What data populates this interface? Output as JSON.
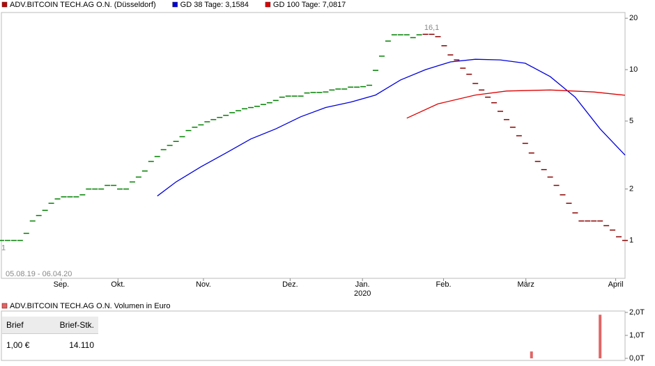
{
  "chart_data": [
    {
      "type": "line",
      "date_range": "05.08.19 - 06.04.20",
      "log_y": true,
      "xlim": [
        0,
        100
      ],
      "ylim": [
        0.6,
        21.6
      ],
      "yticks": [
        20,
        10,
        5,
        2,
        1
      ],
      "xticks": [
        {
          "value": 9.6,
          "label": "Sep."
        },
        {
          "value": 18.7,
          "label": "Okt."
        },
        {
          "value": 32.4,
          "label": "Nov."
        },
        {
          "value": 46.3,
          "label": "Dez."
        },
        {
          "value": 57.9,
          "label": "Jan."
        },
        {
          "value": 70.9,
          "label": "Feb."
        },
        {
          "value": 84.1,
          "label": "März"
        },
        {
          "value": 98.5,
          "label": "April"
        }
      ],
      "x_year_labels": [
        {
          "value": 57.9,
          "label": "2020"
        }
      ],
      "series": [
        {
          "name": "ADV.BITCOIN TECH.AG O.N. (Düsseldorf)",
          "color": "#c00000",
          "up_color": "#008000",
          "down_color": "#8b0000",
          "marker": "dash",
          "x": [
            0,
            1,
            2,
            3,
            4,
            5,
            6,
            7,
            8,
            9,
            10,
            11,
            12,
            13,
            14,
            15,
            16,
            17,
            18,
            19,
            20,
            21,
            22,
            23,
            24,
            25,
            26,
            27,
            28,
            29,
            30,
            31,
            32,
            33,
            34,
            35,
            36,
            37,
            38,
            39,
            40,
            41,
            42,
            43,
            44,
            45,
            46,
            47,
            48,
            49,
            50,
            51,
            52,
            53,
            54,
            55,
            56,
            57,
            58,
            59,
            60,
            61,
            62,
            63,
            64,
            65,
            66,
            67,
            68,
            69,
            70,
            71,
            72,
            73,
            74,
            75,
            76,
            77,
            78,
            79,
            80,
            81,
            82,
            83,
            84,
            85,
            86,
            87,
            88,
            89,
            90,
            91,
            92,
            93,
            94,
            95,
            96,
            97,
            98,
            99,
            100
          ],
          "values": [
            1.0,
            1.0,
            1.0,
            1.0,
            1.1,
            1.3,
            1.4,
            1.5,
            1.65,
            1.75,
            1.8,
            1.8,
            1.8,
            1.85,
            2.0,
            2.0,
            2.0,
            2.1,
            2.1,
            2.0,
            2.0,
            2.2,
            2.35,
            2.55,
            2.9,
            3.1,
            3.4,
            3.6,
            3.8,
            4.05,
            4.4,
            4.6,
            4.75,
            4.95,
            5.1,
            5.25,
            5.4,
            5.6,
            5.75,
            5.9,
            6.0,
            6.1,
            6.25,
            6.4,
            6.6,
            6.9,
            7.0,
            7.0,
            7.0,
            7.3,
            7.35,
            7.35,
            7.4,
            7.6,
            7.7,
            7.7,
            7.9,
            7.9,
            7.95,
            8.1,
            9.9,
            12.0,
            14.7,
            16.0,
            16.0,
            16.0,
            15.4,
            16.0,
            16.1,
            16.1,
            15.6,
            13.8,
            12.2,
            11.4,
            10.2,
            9.4,
            8.3,
            7.6,
            6.9,
            6.4,
            5.7,
            5.1,
            4.6,
            4.1,
            3.7,
            3.25,
            2.9,
            2.6,
            2.35,
            2.1,
            1.85,
            1.65,
            1.45,
            1.3,
            1.3,
            1.3,
            1.3,
            1.22,
            1.15,
            1.05,
            1.0
          ]
        },
        {
          "name": "GD 38 Tage: 3,1584",
          "color": "#0000dd",
          "marker": "line",
          "x": [
            25,
            28,
            32,
            36,
            40,
            44,
            48,
            52,
            56,
            60,
            64,
            68,
            72,
            76,
            80,
            84,
            88,
            92,
            96,
            100
          ],
          "values": [
            1.82,
            2.2,
            2.7,
            3.25,
            3.93,
            4.5,
            5.3,
            6.0,
            6.45,
            7.1,
            8.7,
            10.0,
            11.1,
            11.5,
            11.4,
            10.9,
            9.1,
            6.9,
            4.5,
            3.16
          ]
        },
        {
          "name": "GD 100 Tage: 7,0817",
          "color": "#dd0000",
          "marker": "line",
          "x": [
            65,
            70,
            76,
            81,
            88,
            95,
            100
          ],
          "values": [
            5.2,
            6.3,
            7.1,
            7.5,
            7.6,
            7.4,
            7.08
          ]
        }
      ],
      "annotations": [
        {
          "label": "16,1",
          "x": 69,
          "value": 16.1,
          "position": "above"
        },
        {
          "label": "1",
          "x": 0,
          "value": 1.0,
          "position": "below"
        }
      ]
    },
    {
      "type": "bar",
      "title": "ADV.BITCOIN TECH.AG O.N. Volumen in Euro",
      "color": "#e06666",
      "xlim": [
        0,
        100
      ],
      "ylim": [
        0,
        2
      ],
      "yticks": [
        {
          "value": 2,
          "label": "2,0T"
        },
        {
          "value": 1,
          "label": "1,0T"
        },
        {
          "value": 0,
          "label": "0,0T"
        }
      ],
      "x": [
        85,
        96
      ],
      "values": [
        0.3,
        1.9
      ]
    }
  ],
  "quote_table": {
    "headers": [
      "Brief",
      "Brief-Stk."
    ],
    "rows": [
      [
        "1,00 €",
        "14.110"
      ]
    ]
  }
}
